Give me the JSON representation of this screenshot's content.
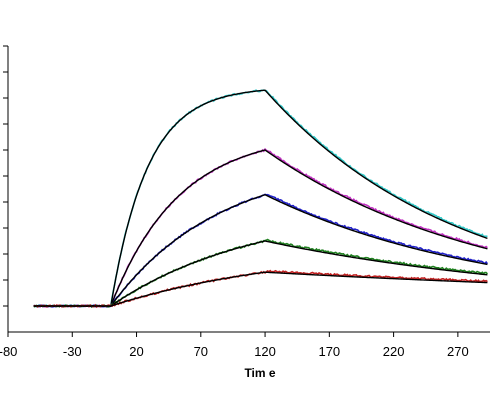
{
  "chart_data": {
    "type": "line",
    "title": "",
    "xlabel": "Tim e",
    "ylabel": "",
    "xlim": [
      -80,
      295
    ],
    "ylim": [
      -5,
      50
    ],
    "x_ticks": [
      -80,
      -30,
      20,
      70,
      120,
      170,
      220,
      270
    ],
    "x_tick_labels": [
      "-80",
      "-30",
      "20",
      "70",
      "120",
      "170",
      "220",
      "270"
    ],
    "y_ticks": [
      0,
      5,
      10,
      15,
      20,
      25,
      30,
      35,
      40,
      45,
      50
    ],
    "grid": false,
    "legend": "none",
    "baseline_start": -60,
    "injection_start": 0,
    "dissociation_start": 120,
    "end": 293,
    "fit_color": "#000000",
    "series": [
      {
        "peak": 41.5,
        "end_value": 13.0,
        "rate": 0.035,
        "color": "#30c8c8"
      },
      {
        "peak": 30.0,
        "end_value": 11.0,
        "rate": 0.019,
        "color": "#c030c0"
      },
      {
        "peak": 21.4,
        "end_value": 8.0,
        "rate": 0.012,
        "color": "#2020c8"
      },
      {
        "peak": 12.5,
        "end_value": 6.0,
        "rate": 0.009,
        "color": "#208020"
      },
      {
        "peak": 6.5,
        "end_value": 4.5,
        "rate": 0.007,
        "color": "#c02020"
      }
    ]
  }
}
